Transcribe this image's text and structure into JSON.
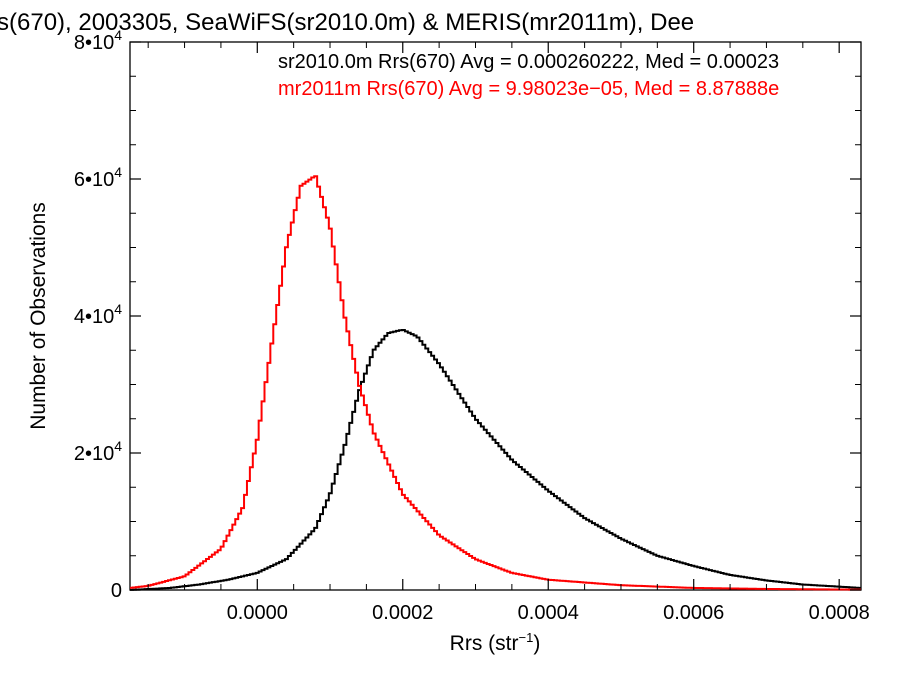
{
  "chart_data": {
    "type": "line",
    "title": "s(670), 2003305, SeaWiFS(sr2010.0m) & MERIS(mr2011m), Dee",
    "xlabel": {
      "base": "Rrs (str",
      "sup": "−1",
      "close": ")"
    },
    "ylabel": "Number of Observations",
    "xlim": [
      -0.000175,
      0.00083
    ],
    "ylim": [
      0,
      80000
    ],
    "x_ticks": [
      {
        "value": 0.0,
        "label": "0.0000"
      },
      {
        "value": 0.0002,
        "label": "0.0002"
      },
      {
        "value": 0.0004,
        "label": "0.0004"
      },
      {
        "value": 0.0006,
        "label": "0.0006"
      },
      {
        "value": 0.0008,
        "label": "0.0008"
      }
    ],
    "y_ticks": [
      {
        "value": 0,
        "label": "0",
        "base": "",
        "exp": ""
      },
      {
        "value": 20000,
        "label": "2•10^4",
        "base": "2•10",
        "exp": "4"
      },
      {
        "value": 40000,
        "label": "4•10^4",
        "base": "4•10",
        "exp": "4"
      },
      {
        "value": 60000,
        "label": "6•10^4",
        "base": "6•10",
        "exp": "4"
      },
      {
        "value": 80000,
        "label": "8•10^4",
        "base": "8•10",
        "exp": "4"
      }
    ],
    "grid": false,
    "legend_position": "top-right",
    "series": [
      {
        "name": "sr2010.0m Rrs(670) Avg = 0.000260222, Med = 0.00023",
        "color": "#000000",
        "x": [
          -0.000175,
          -0.00012,
          -8e-05,
          -4e-05,
          0.0,
          4e-05,
          8e-05,
          0.0001,
          0.00012,
          0.00014,
          0.00016,
          0.00018,
          0.0002,
          0.00022,
          0.00025,
          0.0003,
          0.00035,
          0.0004,
          0.00045,
          0.0005,
          0.00055,
          0.0006,
          0.00065,
          0.0007,
          0.00075,
          0.00083
        ],
        "y": [
          0,
          300,
          800,
          1500,
          2500,
          4500,
          9000,
          14000,
          21000,
          29000,
          35000,
          37500,
          38000,
          37000,
          33000,
          25000,
          19000,
          14500,
          10500,
          7500,
          5000,
          3500,
          2200,
          1400,
          800,
          300
        ]
      },
      {
        "name": "mr2011m Rrs(670) Avg = 9.98023e−05, Med = 8.87888e",
        "color": "#ff0000",
        "x": [
          -0.000175,
          -0.00015,
          -0.0001,
          -5e-05,
          -2e-05,
          0.0,
          2e-05,
          4e-05,
          6e-05,
          8e-05,
          0.0001,
          0.00012,
          0.00014,
          0.00016,
          0.0002,
          0.00025,
          0.0003,
          0.00035,
          0.0004,
          0.0005,
          0.0006,
          0.0007,
          0.00083
        ],
        "y": [
          300,
          600,
          2000,
          6000,
          12000,
          22000,
          36000,
          50000,
          59000,
          60500,
          53000,
          40000,
          30000,
          23000,
          14000,
          8000,
          4500,
          2500,
          1500,
          700,
          300,
          150,
          50
        ]
      }
    ]
  }
}
